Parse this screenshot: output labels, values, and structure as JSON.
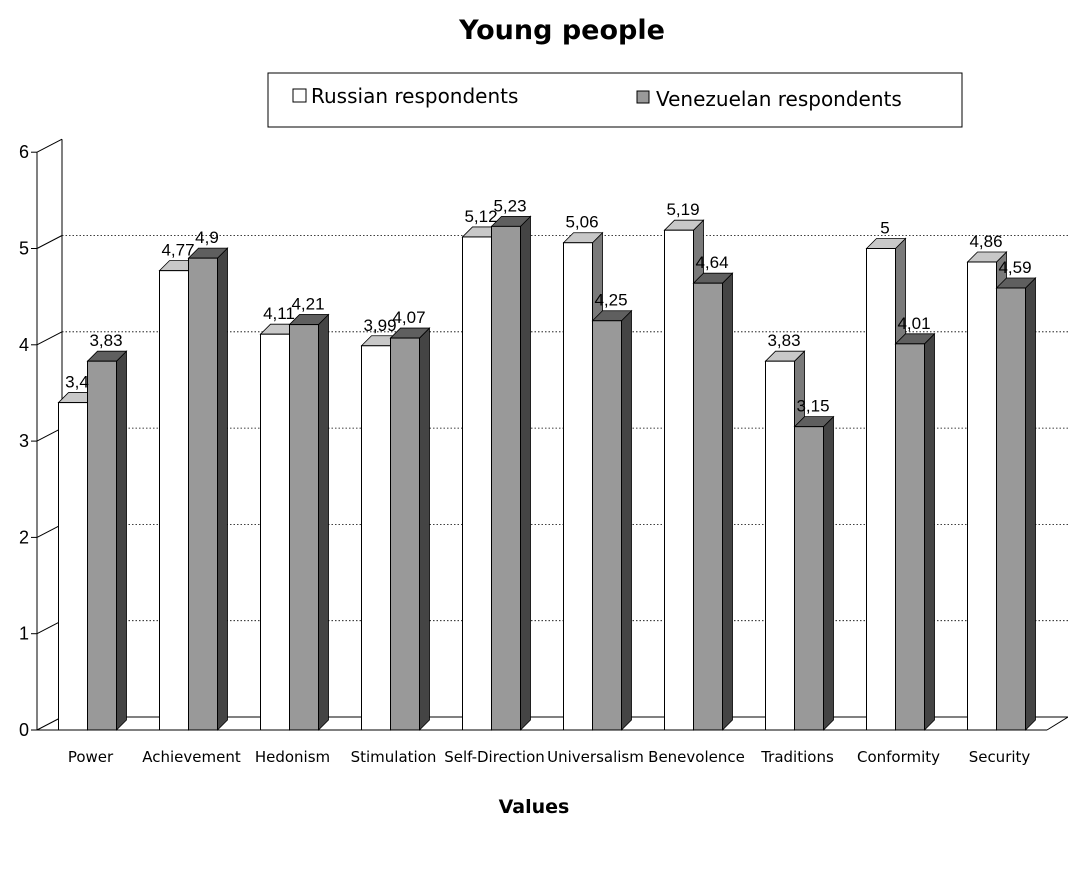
{
  "colors": {
    "series_1": "#ffffff",
    "series_2": "#999999",
    "axis": "#000000",
    "grid": "#000000"
  },
  "chart_data": {
    "type": "bar",
    "title": "Young people",
    "xlabel": "Values",
    "ylabel": "",
    "ylim": [
      0,
      6
    ],
    "yticks": [
      "0",
      "1",
      "2",
      "3",
      "4",
      "5",
      "6"
    ],
    "grid": "horizontal dotted at 1-5",
    "legend_position": "top-center",
    "three_d": true,
    "categories": [
      "Power",
      "Achievement",
      "Hedonism",
      "Stimulation",
      "Self-Direction",
      "Universalism",
      "Benevolence",
      "Traditions",
      "Conformity",
      "Security"
    ],
    "series": [
      {
        "name": "Russian respondents",
        "values": [
          3.4,
          4.77,
          4.11,
          3.99,
          5.12,
          5.06,
          5.19,
          3.83,
          5,
          4.86
        ],
        "labels": [
          "3,4",
          "4,77",
          "4,11",
          "3,99",
          "5,12",
          "5,06",
          "5,19",
          "3,83",
          "5",
          "4,86"
        ]
      },
      {
        "name": "Venezuelan respondents",
        "values": [
          3.83,
          4.9,
          4.21,
          4.07,
          5.23,
          4.25,
          4.64,
          3.15,
          4.01,
          4.59
        ],
        "labels": [
          "3,83",
          "4,9",
          "4,21",
          "4,07",
          "5,23",
          "4,25",
          "4,64",
          "3,15",
          "4,01",
          "4,59"
        ]
      }
    ]
  }
}
